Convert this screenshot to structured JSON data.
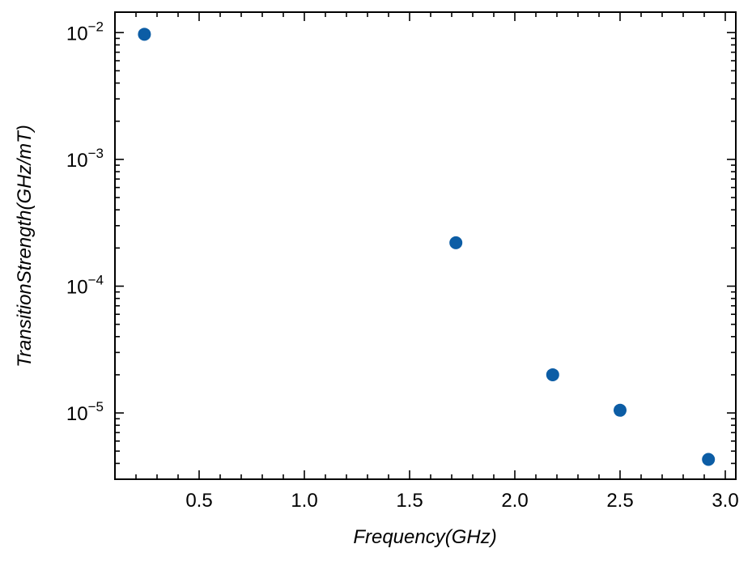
{
  "chart_data": {
    "type": "scatter",
    "xlabel": "Frequency(GHz)",
    "ylabel": "TransitionStrength(GHz/mT)",
    "xlim": [
      0.1,
      3.05
    ],
    "ylim": [
      3e-06,
      0.0145
    ],
    "yscale": "log",
    "grid": false,
    "x_ticks": [
      {
        "value": 0.5,
        "label": "0.5"
      },
      {
        "value": 1.0,
        "label": "1.0"
      },
      {
        "value": 1.5,
        "label": "1.5"
      },
      {
        "value": 2.0,
        "label": "2.0"
      },
      {
        "value": 2.5,
        "label": "2.5"
      },
      {
        "value": 3.0,
        "label": "3.0"
      }
    ],
    "y_ticks": [
      {
        "value": 0.01,
        "base": "10",
        "exp": "−2"
      },
      {
        "value": 0.001,
        "base": "10",
        "exp": "−3"
      },
      {
        "value": 0.0001,
        "base": "10",
        "exp": "−4"
      },
      {
        "value": 1e-05,
        "base": "10",
        "exp": "−5"
      }
    ],
    "series": [
      {
        "color": "#0c5da5",
        "points": [
          {
            "x": 0.24,
            "y": 0.0097
          },
          {
            "x": 1.72,
            "y": 0.00022
          },
          {
            "x": 2.18,
            "y": 2e-05
          },
          {
            "x": 2.5,
            "y": 1.05e-05
          },
          {
            "x": 2.92,
            "y": 4.3e-06
          }
        ]
      }
    ]
  }
}
